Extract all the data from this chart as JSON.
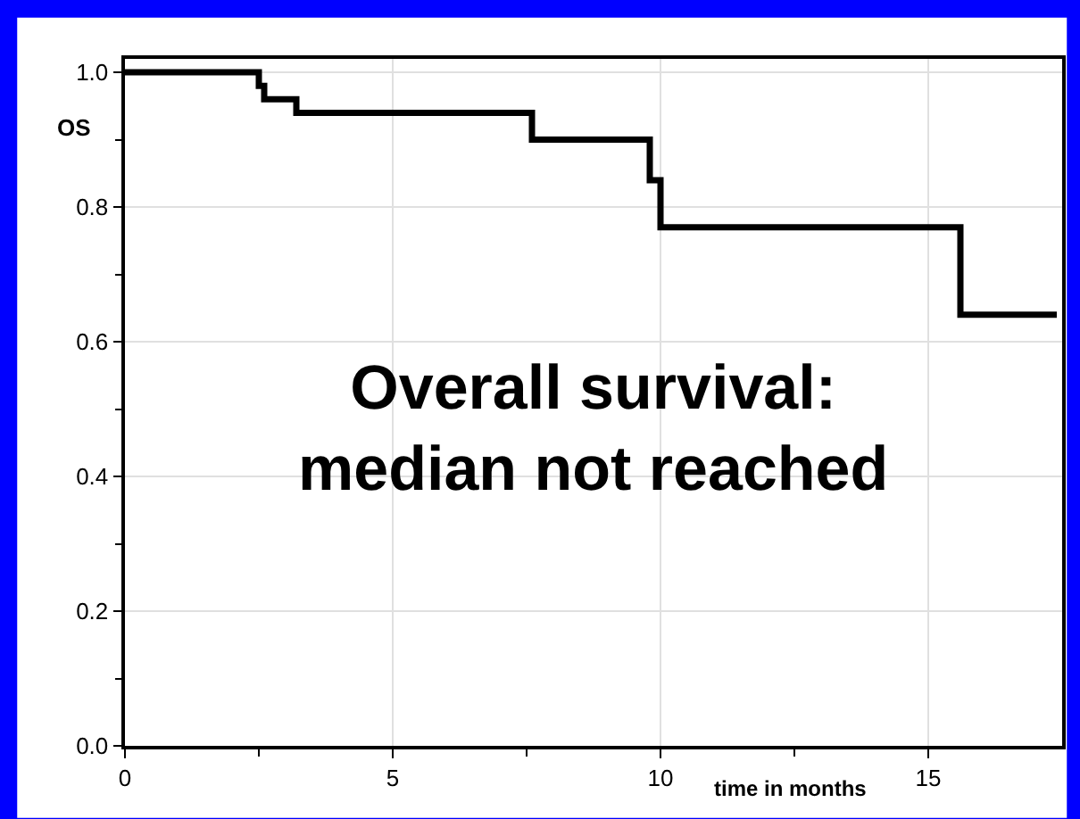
{
  "chart_data": {
    "type": "step",
    "xlabel": "time in months",
    "ylabel": "OS",
    "x": [
      0,
      2.5,
      2.6,
      3.2,
      7.6,
      9.8,
      10.0,
      15.6,
      17.4
    ],
    "series": [
      {
        "color": "#000000",
        "values": [
          1.0,
          0.98,
          0.96,
          0.94,
          0.9,
          0.84,
          0.77,
          0.64,
          0.64
        ]
      }
    ],
    "xlim": [
      0,
      17.5
    ],
    "ylim": [
      0,
      1.02
    ],
    "xticks": [
      0,
      {
        "value": 2.5,
        "label": null
      },
      5,
      {
        "value": 7.5,
        "label": null
      },
      10,
      {
        "value": 12.5,
        "label": null
      },
      15
    ],
    "yticks": [
      {
        "value": 0,
        "label": "0.0"
      },
      {
        "value": 0.1,
        "label": null
      },
      {
        "value": 0.2,
        "label": "0.2"
      },
      {
        "value": 0.3,
        "label": null
      },
      {
        "value": 0.4,
        "label": "0.4"
      },
      {
        "value": 0.5,
        "label": null
      },
      {
        "value": 0.6,
        "label": "0.6"
      },
      {
        "value": 0.7,
        "label": null
      },
      {
        "value": 0.8,
        "label": "0.8"
      },
      {
        "value": 0.9,
        "label": null
      },
      {
        "value": 1.0,
        "label": "1.0"
      }
    ],
    "annotations": [
      "Overall survival:\nmedian not reached"
    ],
    "grid": true,
    "marker": "none",
    "line_style": "solid"
  }
}
